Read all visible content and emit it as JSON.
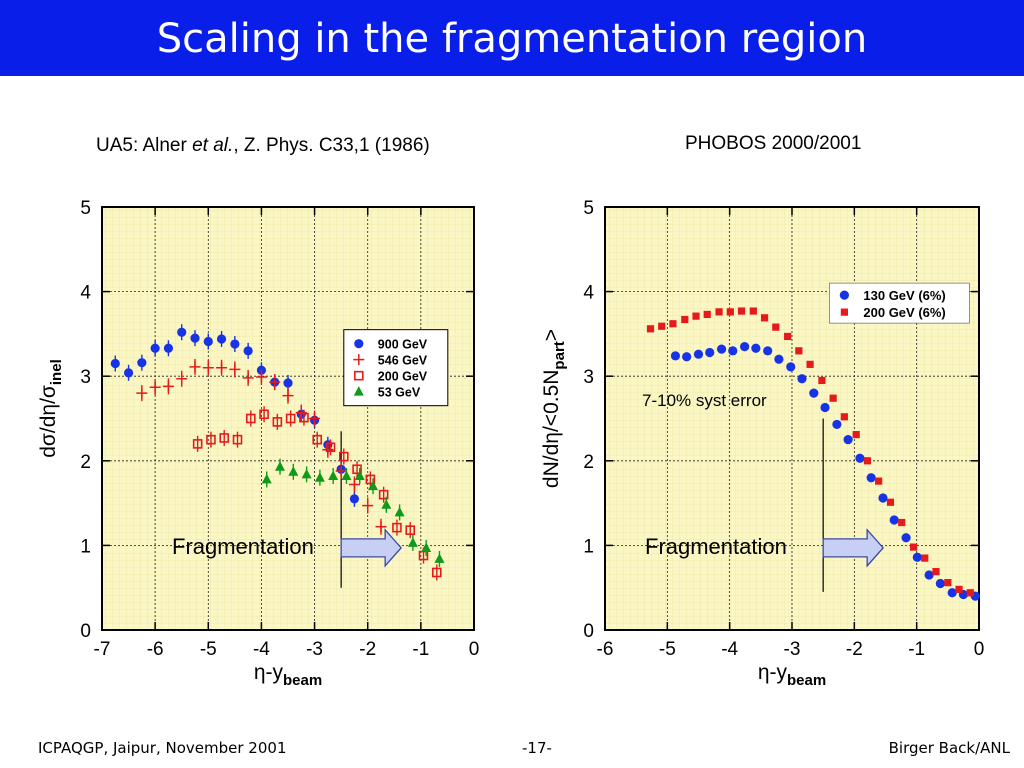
{
  "slide": {
    "title": "Scaling in the fragmentation region",
    "footer_left": "ICPAQGP, Jaipur, November 2001",
    "footer_center": "-17-",
    "footer_right": "Birger Back/ANL",
    "caption_left_pre": "UA5: Alner ",
    "caption_left_italic": "et al.",
    "caption_left_post": ", Z. Phys. C33,1 (1986)",
    "caption_right": "PHOBOS 2000/2001",
    "colors": {
      "title_bar": "#0a1eea",
      "plot_bg": "#fbf7c4",
      "blue": "#1733e6",
      "red": "#e51b1b",
      "green": "#0f9a1a",
      "arrow_fill": "#c7d0f4"
    }
  },
  "chart_data": [
    {
      "type": "scatter",
      "xlabel": "η-y",
      "xlabel_sub": "beam",
      "ylabel": "dσ/dη/σ",
      "ylabel_sub": "inel",
      "xlim": [
        -7,
        0
      ],
      "ylim": [
        0,
        5
      ],
      "xticks": [
        -7,
        -6,
        -5,
        -4,
        -3,
        -2,
        -1,
        0
      ],
      "yticks": [
        0,
        1,
        2,
        3,
        4,
        5
      ],
      "legend_position": "right",
      "annotation": "Fragmentation",
      "marker_line_x": -2.5,
      "series": [
        {
          "name": "900 GeV",
          "marker": "circle",
          "color": "#1733e6",
          "x": [
            -6.75,
            -6.5,
            -6.25,
            -6.0,
            -5.75,
            -5.5,
            -5.25,
            -5.0,
            -4.75,
            -4.5,
            -4.25,
            -4.0,
            -3.75,
            -3.5,
            -3.25,
            -3.0,
            -2.75,
            -2.5,
            -2.25
          ],
          "y": [
            3.15,
            3.04,
            3.16,
            3.33,
            3.33,
            3.52,
            3.45,
            3.41,
            3.44,
            3.38,
            3.3,
            3.07,
            2.93,
            2.92,
            2.55,
            2.48,
            2.19,
            1.9,
            1.55
          ]
        },
        {
          "name": "546 GeV",
          "marker": "plus",
          "color": "#e51b1b",
          "x": [
            -6.25,
            -6.0,
            -5.75,
            -5.5,
            -5.25,
            -5.0,
            -4.75,
            -4.5,
            -4.25,
            -4.0,
            -3.75,
            -3.5,
            -3.25,
            -3.0,
            -2.75,
            -2.5,
            -2.25,
            -2.0,
            -1.75
          ],
          "y": [
            2.8,
            2.87,
            2.88,
            2.97,
            3.11,
            3.1,
            3.1,
            3.08,
            2.98,
            2.99,
            2.93,
            2.77,
            2.57,
            2.5,
            2.13,
            1.88,
            1.72,
            1.47,
            1.22
          ]
        },
        {
          "name": "200 GeV",
          "marker": "open-square",
          "color": "#e51b1b",
          "x": [
            -5.2,
            -4.95,
            -4.7,
            -4.45,
            -4.2,
            -3.95,
            -3.7,
            -3.45,
            -3.2,
            -2.95,
            -2.7,
            -2.45,
            -2.2,
            -1.95,
            -1.7,
            -1.45,
            -1.2,
            -0.95,
            -0.7
          ],
          "y": [
            2.2,
            2.25,
            2.27,
            2.25,
            2.5,
            2.55,
            2.46,
            2.5,
            2.51,
            2.25,
            2.16,
            2.05,
            1.9,
            1.78,
            1.6,
            1.21,
            1.18,
            0.88,
            0.68
          ]
        },
        {
          "name": "53 GeV",
          "marker": "triangle",
          "color": "#0f9a1a",
          "x": [
            -3.9,
            -3.65,
            -3.4,
            -3.15,
            -2.9,
            -2.65,
            -2.4,
            -2.15,
            -1.9,
            -1.65,
            -1.4,
            -1.15,
            -0.9,
            -0.65
          ],
          "y": [
            1.78,
            1.93,
            1.87,
            1.84,
            1.8,
            1.82,
            1.82,
            1.82,
            1.7,
            1.48,
            1.39,
            1.03,
            0.97,
            0.84
          ]
        }
      ]
    },
    {
      "type": "scatter",
      "xlabel": "η-y",
      "xlabel_sub": "beam",
      "ylabel": "dN/dη/<0.5N",
      "ylabel_sub": "part",
      "ylabel_post": ">",
      "xlim": [
        -6,
        0
      ],
      "ylim": [
        0,
        5
      ],
      "xticks": [
        -6,
        -5,
        -4,
        -3,
        -2,
        -1,
        0
      ],
      "yticks": [
        0,
        1,
        2,
        3,
        4,
        5
      ],
      "legend_position": "top-right",
      "annotation": "Fragmentation",
      "note": "7-10% syst error",
      "marker_line_x": -2.5,
      "series": [
        {
          "name": "130 GeV (6%)",
          "marker": "circle",
          "color": "#1733e6",
          "x": [
            -4.87,
            -4.69,
            -4.5,
            -4.32,
            -4.13,
            -3.95,
            -3.76,
            -3.58,
            -3.39,
            -3.21,
            -3.02,
            -2.84,
            -2.65,
            -2.47,
            -2.28,
            -2.1,
            -1.91,
            -1.73,
            -1.54,
            -1.36,
            -1.17,
            -0.99,
            -0.8,
            -0.62,
            -0.43,
            -0.25,
            -0.06
          ],
          "y": [
            3.24,
            3.23,
            3.26,
            3.28,
            3.32,
            3.3,
            3.35,
            3.33,
            3.3,
            3.2,
            3.11,
            2.97,
            2.8,
            2.63,
            2.43,
            2.25,
            2.03,
            1.8,
            1.56,
            1.3,
            1.09,
            0.86,
            0.65,
            0.55,
            0.44,
            0.42,
            0.4
          ]
        },
        {
          "name": "200 GeV (6%)",
          "marker": "square",
          "color": "#e51b1b",
          "x": [
            -5.27,
            -5.09,
            -4.91,
            -4.72,
            -4.54,
            -4.36,
            -4.17,
            -3.99,
            -3.81,
            -3.62,
            -3.44,
            -3.26,
            -3.07,
            -2.89,
            -2.71,
            -2.52,
            -2.34,
            -2.16,
            -1.97,
            -1.79,
            -1.61,
            -1.42,
            -1.24,
            -1.05,
            -0.87,
            -0.69,
            -0.5,
            -0.32,
            -0.14
          ],
          "y": [
            3.56,
            3.59,
            3.62,
            3.67,
            3.71,
            3.73,
            3.76,
            3.76,
            3.77,
            3.77,
            3.69,
            3.58,
            3.47,
            3.3,
            3.14,
            2.95,
            2.74,
            2.52,
            2.31,
            2.0,
            1.76,
            1.51,
            1.27,
            0.98,
            0.85,
            0.69,
            0.56,
            0.48,
            0.44
          ]
        }
      ]
    }
  ]
}
